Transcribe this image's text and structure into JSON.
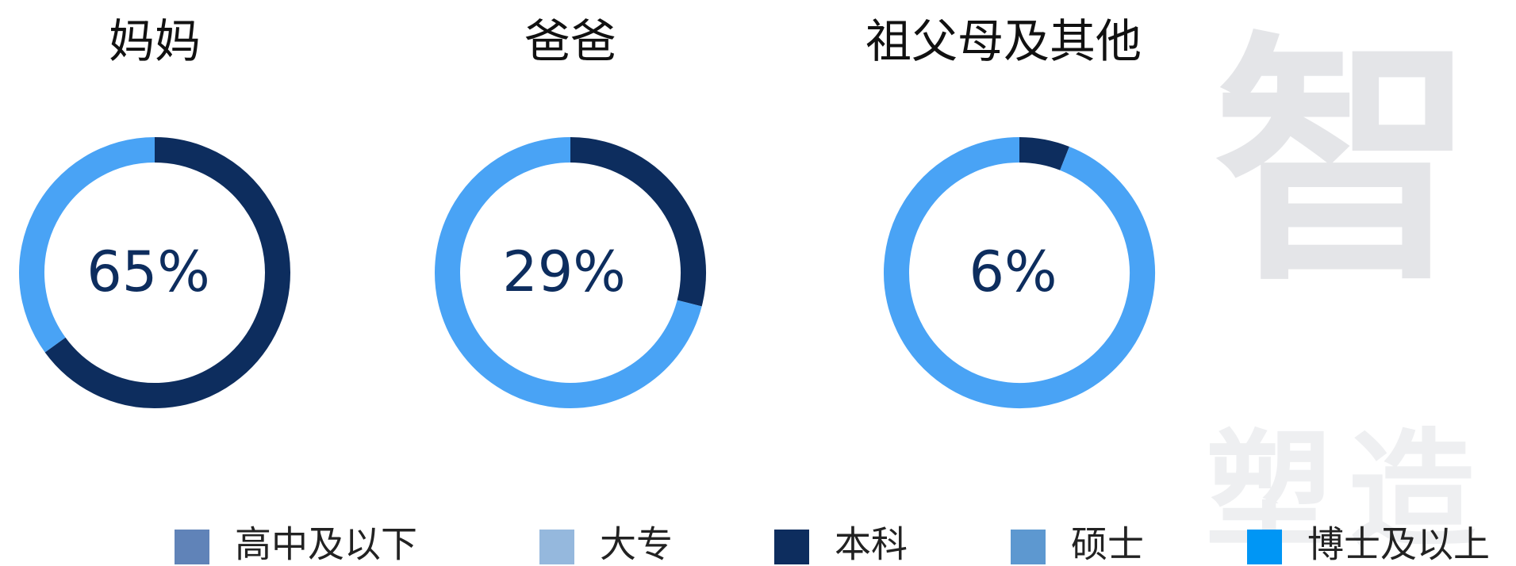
{
  "chart_data": [
    {
      "type": "donut",
      "title": "妈妈",
      "values": [
        65,
        35
      ],
      "value_labels": [
        "65%",
        null
      ],
      "colors": [
        "#0d2d5e",
        "#49a3f5"
      ]
    },
    {
      "type": "donut",
      "title": "爸爸",
      "values": [
        29,
        71
      ],
      "value_labels": [
        "29%",
        null
      ],
      "colors": [
        "#0d2d5e",
        "#49a3f5"
      ]
    },
    {
      "type": "donut",
      "title": "祖父母及其他",
      "values": [
        6,
        94
      ],
      "value_labels": [
        "6%",
        null
      ],
      "colors": [
        "#0d2d5e",
        "#49a3f5"
      ]
    }
  ],
  "legend": [
    {
      "name": "高中及以下",
      "color": "#6083b8"
    },
    {
      "name": "大专",
      "color": "#95b8dd"
    },
    {
      "name": "本科",
      "color": "#0d2d5e"
    },
    {
      "name": "硕士",
      "color": "#5d98d0"
    },
    {
      "name": "博士及以上",
      "color": "#0096f5"
    }
  ],
  "watermark": [
    "智",
    "塑造"
  ]
}
